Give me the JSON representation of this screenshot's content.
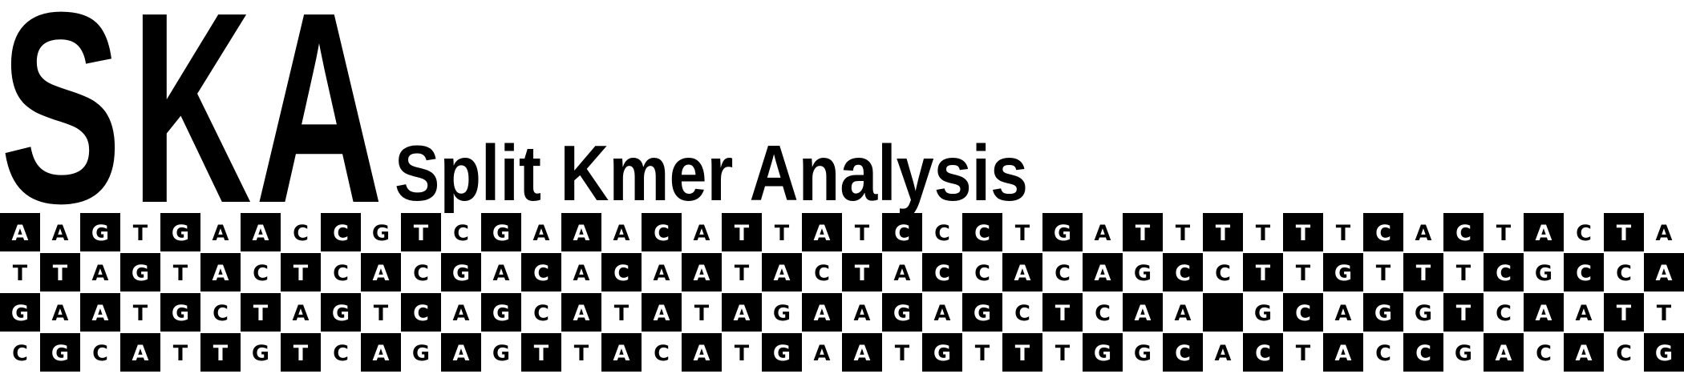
{
  "logo": {
    "acronym": [
      "S",
      "K",
      "A"
    ],
    "subtitle": "Split Kmer Analysis",
    "colors": {
      "ink": "#000000",
      "paper": "#ffffff"
    }
  },
  "sequences": [
    "AAGTGAACCGTCGAAACATTATCCCTGATTTTTTCACTACTA",
    "TTAGTACTCACGACACAATACTACCACAGCCTTGTTTCGCCA",
    "GAATGCTAGTCAGCATATAGAAGAGCTCAA GCAGGTCAATT",
    "CGCATTGTCAGAGTTACATGAATGTTTGGCACTACCGACACG"
  ]
}
